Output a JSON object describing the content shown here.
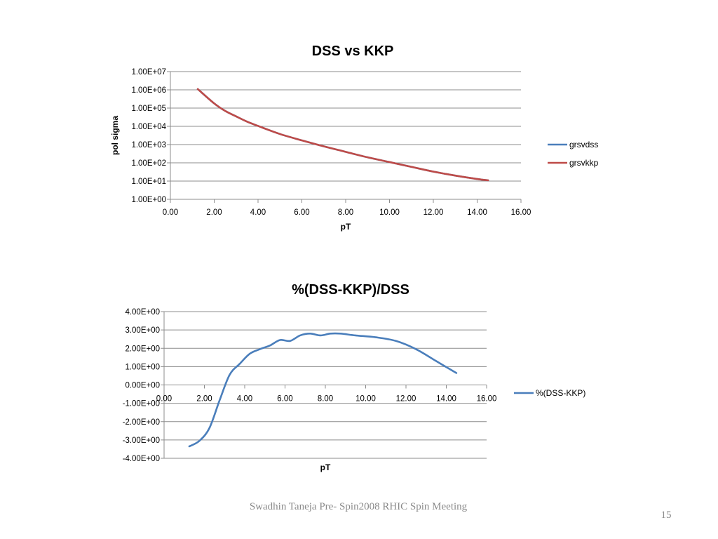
{
  "chart_data": [
    {
      "type": "line",
      "title": "DSS vs KKP",
      "xlabel": "pT",
      "ylabel": "pol sigma",
      "yscale": "log",
      "xlim": [
        0,
        16
      ],
      "ylim": [
        1,
        10000000
      ],
      "x_ticks": [
        "0.00",
        "2.00",
        "4.00",
        "6.00",
        "8.00",
        "10.00",
        "12.00",
        "14.00",
        "16.00"
      ],
      "y_ticks": [
        "1.00E+07",
        "1.00E+06",
        "1.00E+05",
        "1.00E+04",
        "1.00E+03",
        "1.00E+02",
        "1.00E+01",
        "1.00E+00"
      ],
      "grid": true,
      "legend": "right",
      "series": [
        {
          "name": "grsvdss",
          "color": "#4a7ebb",
          "x": [
            1.25,
            2.0,
            2.5,
            3.0,
            3.5,
            4.0,
            5.0,
            6.0,
            7.0,
            8.0,
            9.0,
            10.0,
            11.0,
            12.0,
            13.0,
            14.0,
            14.5
          ],
          "y": [
            1100000,
            180000,
            70000,
            35000,
            18000,
            10500,
            3800,
            1700,
            800,
            400,
            200,
            110,
            60,
            33,
            20,
            13,
            11
          ]
        },
        {
          "name": "grsvkkp",
          "color": "#be4b48",
          "x": [
            1.25,
            2.0,
            2.5,
            3.0,
            3.5,
            4.0,
            5.0,
            6.0,
            7.0,
            8.0,
            9.0,
            10.0,
            11.0,
            12.0,
            13.0,
            14.0,
            14.5
          ],
          "y": [
            1100000,
            180000,
            70000,
            35000,
            18000,
            10500,
            3800,
            1700,
            800,
            400,
            200,
            110,
            60,
            33,
            20,
            13,
            11
          ]
        }
      ]
    },
    {
      "type": "line",
      "title": "%(DSS-KKP)/DSS",
      "xlabel": "pT",
      "ylabel": "",
      "xlim": [
        0,
        16
      ],
      "ylim": [
        -4,
        4
      ],
      "x_ticks": [
        "0.00",
        "2.00",
        "4.00",
        "6.00",
        "8.00",
        "10.00",
        "12.00",
        "14.00",
        "16.00"
      ],
      "y_ticks": [
        "4.00E+00",
        "3.00E+00",
        "2.00E+00",
        "1.00E+00",
        "0.00E+00",
        "-1.00E+00",
        "-2.00E+00",
        "-3.00E+00",
        "-4.00E+00"
      ],
      "grid": true,
      "legend": "right",
      "series": [
        {
          "name": "%(DSS-KKP)",
          "color": "#4a7ebb",
          "x": [
            1.25,
            1.75,
            2.25,
            2.75,
            3.25,
            3.75,
            4.25,
            4.75,
            5.25,
            5.75,
            6.25,
            6.75,
            7.25,
            7.75,
            8.25,
            8.75,
            9.5,
            10.5,
            11.5,
            12.5,
            13.5,
            14.5
          ],
          "y": [
            -3.35,
            -3.05,
            -2.35,
            -0.85,
            0.55,
            1.15,
            1.7,
            1.95,
            2.15,
            2.45,
            2.4,
            2.7,
            2.8,
            2.7,
            2.8,
            2.8,
            2.7,
            2.6,
            2.4,
            1.95,
            1.3,
            0.65
          ]
        }
      ]
    }
  ],
  "footer": {
    "text": "Swadhin Taneja  Pre- Spin2008  RHIC Spin Meeting",
    "page": "15"
  }
}
